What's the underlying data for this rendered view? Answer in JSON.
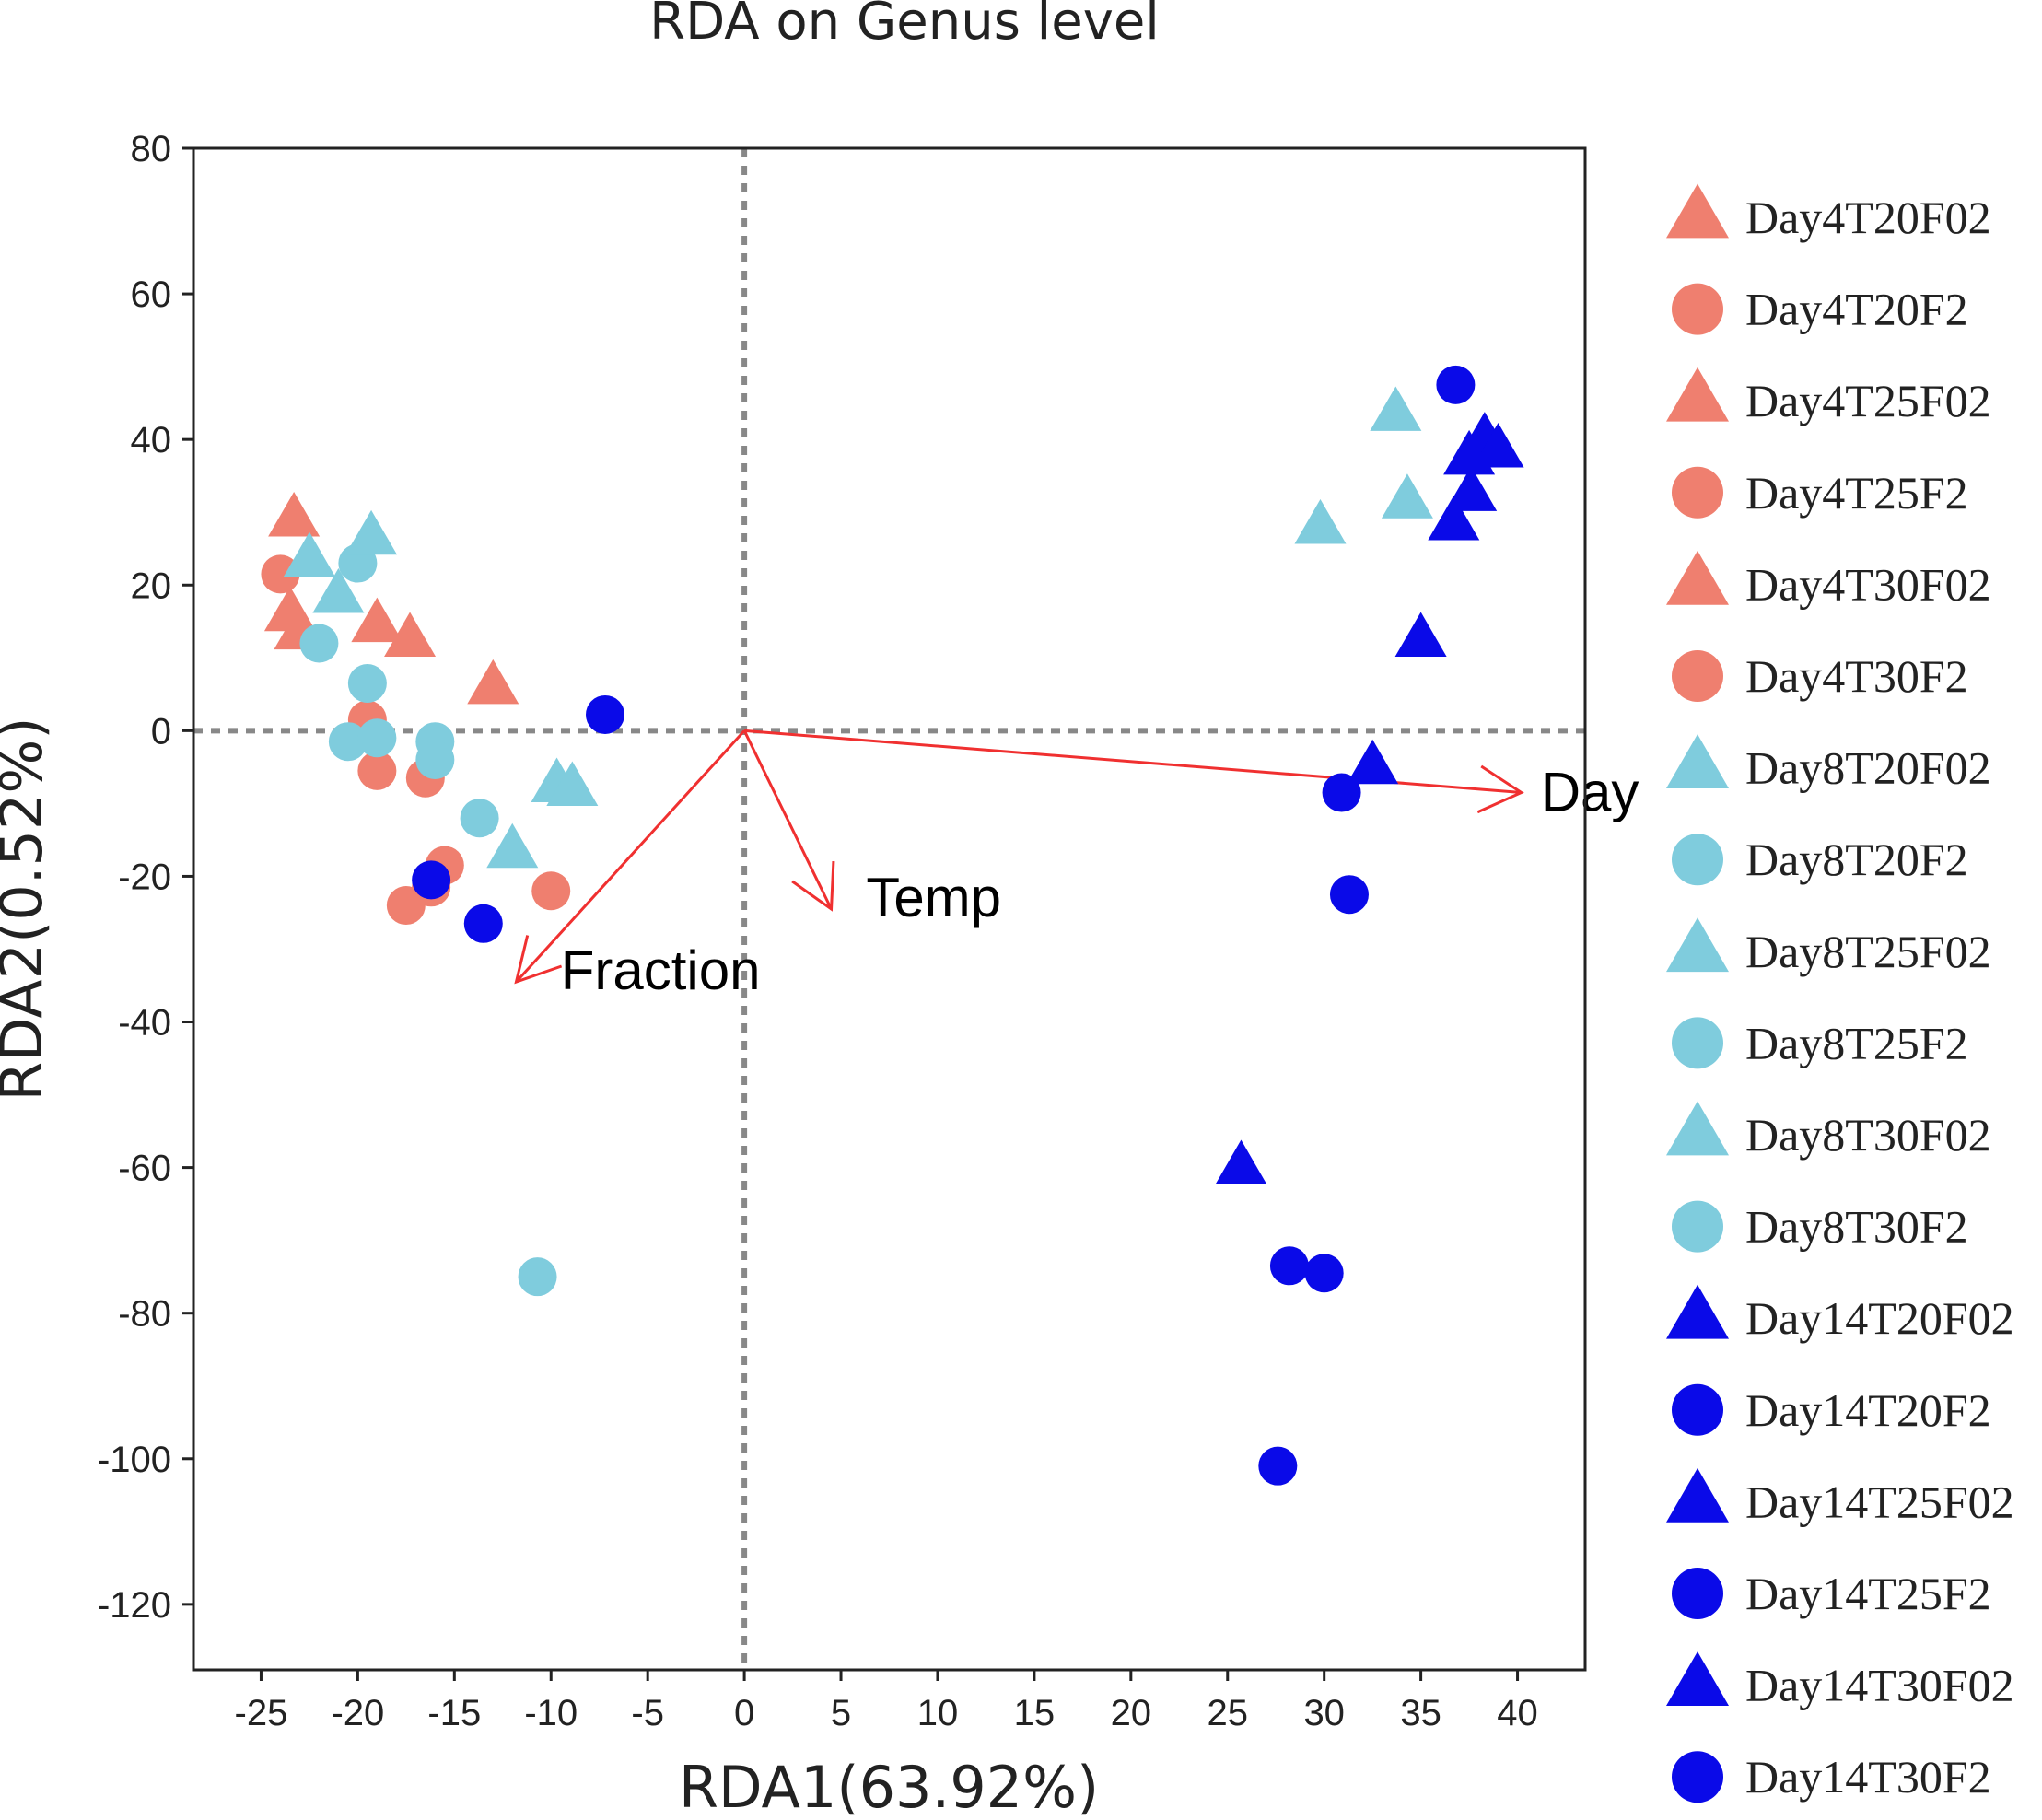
{
  "chart_data": {
    "type": "scatter",
    "title": "RDA on Genus level",
    "xlabel": "RDA1(63.92%)",
    "ylabel": "RDA2(0.52%)",
    "xlim": [
      -28.5,
      43.5
    ],
    "ylim": [
      -129,
      80
    ],
    "xticks": [
      -25,
      -20,
      -15,
      -10,
      -5,
      0,
      5,
      10,
      15,
      20,
      25,
      30,
      35,
      40
    ],
    "yticks": [
      80,
      60,
      40,
      20,
      0,
      -20,
      -40,
      -60,
      -80,
      -100,
      -120
    ],
    "zero_lines": true,
    "grid": false,
    "legend_position": "right",
    "colors": {
      "day4": "#EF7F6F",
      "day8": "#7FCCDD",
      "day14": "#0A0AE8",
      "arrow": "#F03030",
      "zero_line": "#888888"
    },
    "series": [
      {
        "name": "Day4T20F02",
        "color": "#EF7F6F",
        "marker": "triangle",
        "points": [
          [
            -23.3,
            29
          ],
          [
            -23.5,
            16
          ]
        ]
      },
      {
        "name": "Day4T20F2",
        "color": "#EF7F6F",
        "marker": "circle",
        "points": [
          [
            -24,
            21.5
          ],
          [
            -19.5,
            1.5
          ]
        ]
      },
      {
        "name": "Day4T25F02",
        "color": "#EF7F6F",
        "marker": "triangle",
        "points": [
          [
            -23,
            13.5
          ],
          [
            -19,
            14.5
          ]
        ]
      },
      {
        "name": "Day4T25F2",
        "color": "#EF7F6F",
        "marker": "circle",
        "points": [
          [
            -19,
            -5.5
          ],
          [
            -16.5,
            -6.5
          ]
        ]
      },
      {
        "name": "Day4T30F02",
        "color": "#EF7F6F",
        "marker": "triangle",
        "points": [
          [
            -17.3,
            12.5
          ],
          [
            -13,
            6
          ]
        ]
      },
      {
        "name": "Day4T30F2",
        "color": "#EF7F6F",
        "marker": "circle",
        "points": [
          [
            -15.5,
            -18.5
          ],
          [
            -16.2,
            -21.5
          ],
          [
            -17.5,
            -24
          ],
          [
            -10,
            -22
          ]
        ]
      },
      {
        "name": "Day8T20F02",
        "color": "#7FCCDD",
        "marker": "triangle",
        "points": [
          [
            -22.5,
            23.5
          ],
          [
            -21,
            18.5
          ]
        ]
      },
      {
        "name": "Day8T20F2",
        "color": "#7FCCDD",
        "marker": "circle",
        "points": [
          [
            -20,
            23
          ],
          [
            -22,
            12
          ]
        ]
      },
      {
        "name": "Day8T25F02",
        "color": "#7FCCDD",
        "marker": "triangle",
        "points": [
          [
            -19.3,
            26.5
          ],
          [
            -9.7,
            -7.5
          ]
        ]
      },
      {
        "name": "Day8T25F2",
        "color": "#7FCCDD",
        "marker": "circle",
        "points": [
          [
            -19.5,
            6.5
          ],
          [
            -20.5,
            -1.5
          ]
        ]
      },
      {
        "name": "Day8T30F02",
        "color": "#7FCCDD",
        "marker": "triangle",
        "points": [
          [
            -8.9,
            -8
          ],
          [
            -12,
            -16.5
          ],
          [
            29.8,
            28
          ],
          [
            33.7,
            43.5
          ],
          [
            34.3,
            31.5
          ]
        ]
      },
      {
        "name": "Day8T30F2",
        "color": "#7FCCDD",
        "marker": "circle",
        "points": [
          [
            -19,
            -1
          ],
          [
            -16,
            -1.5
          ],
          [
            -16,
            -4
          ],
          [
            -13.7,
            -12
          ],
          [
            -10.7,
            -75
          ]
        ]
      },
      {
        "name": "Day14T20F02",
        "color": "#0A0AE8",
        "marker": "triangle",
        "points": [
          [
            38.3,
            40
          ],
          [
            39,
            38.5
          ],
          [
            37.5,
            37.5
          ]
        ]
      },
      {
        "name": "Day14T20F2",
        "color": "#0A0AE8",
        "marker": "circle",
        "points": [
          [
            36.8,
            47.5
          ],
          [
            -7.2,
            2.2
          ]
        ]
      },
      {
        "name": "Day14T25F02",
        "color": "#0A0AE8",
        "marker": "triangle",
        "points": [
          [
            37.6,
            32.5
          ],
          [
            36.7,
            28.5
          ],
          [
            35,
            12.5
          ]
        ]
      },
      {
        "name": "Day14T25F2",
        "color": "#0A0AE8",
        "marker": "circle",
        "points": [
          [
            -16.2,
            -20.5
          ],
          [
            -13.5,
            -26.5
          ],
          [
            30.9,
            -8.5
          ]
        ]
      },
      {
        "name": "Day14T30F02",
        "color": "#0A0AE8",
        "marker": "triangle",
        "points": [
          [
            32.5,
            -5
          ],
          [
            25.7,
            -60
          ]
        ]
      },
      {
        "name": "Day14T30F2",
        "color": "#0A0AE8",
        "marker": "circle",
        "points": [
          [
            31.3,
            -22.5
          ],
          [
            28.2,
            -73.5
          ],
          [
            30,
            -74.5
          ],
          [
            27.6,
            -101
          ]
        ]
      }
    ],
    "arrows": [
      {
        "label": "Day",
        "x": 40.2,
        "y": -8.5,
        "label_x": 41.2,
        "label_y": -8.5
      },
      {
        "label": "Temp",
        "x": 4.5,
        "y": -24.5,
        "label_x": 6.3,
        "label_y": -23
      },
      {
        "label": "Fraction",
        "x": -11.8,
        "y": -34.5,
        "label_x": -9.5,
        "label_y": -33
      }
    ]
  }
}
